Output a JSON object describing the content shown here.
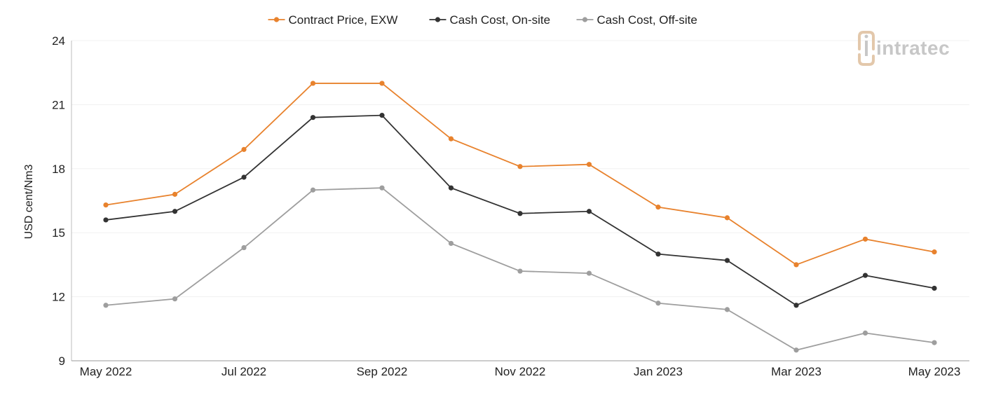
{
  "chart_data": {
    "type": "line",
    "title": "",
    "xlabel": "",
    "ylabel": "USD cent/Nm3",
    "ylim": [
      9,
      24
    ],
    "yticks": [
      9,
      12,
      15,
      18,
      21,
      24
    ],
    "grid": true,
    "legend_position": "top-center",
    "categories": [
      "May 2022",
      "Jun 2022",
      "Jul 2022",
      "Aug 2022",
      "Sep 2022",
      "Oct 2022",
      "Nov 2022",
      "Dec 2022",
      "Jan 2023",
      "Feb 2023",
      "Mar 2023",
      "Apr 2023",
      "May 2023"
    ],
    "x_tick_labels": [
      "May 2022",
      "Jul 2022",
      "Sep 2022",
      "Nov 2022",
      "Jan 2023",
      "Mar 2023",
      "May 2023"
    ],
    "series": [
      {
        "name": "Contract Price, EXW",
        "color": "#e8822d",
        "values": [
          16.3,
          16.8,
          18.9,
          22.0,
          22.0,
          19.4,
          18.1,
          18.2,
          16.2,
          15.7,
          13.5,
          14.7,
          14.1
        ]
      },
      {
        "name": "Cash Cost, On-site",
        "color": "#333333",
        "values": [
          15.6,
          16.0,
          17.6,
          20.4,
          20.5,
          17.1,
          15.9,
          16.0,
          14.0,
          13.7,
          11.6,
          13.0,
          12.4
        ]
      },
      {
        "name": "Cash Cost, Off-site",
        "color": "#9e9e9e",
        "values": [
          11.6,
          11.9,
          14.3,
          17.0,
          17.1,
          14.5,
          13.2,
          13.1,
          11.7,
          11.4,
          9.5,
          10.3,
          9.85
        ]
      }
    ]
  },
  "logo": {
    "text": "intratec",
    "icon": "intratec-logo-icon",
    "accent_color": "#e3c8ab",
    "text_color": "#c7c7c7"
  }
}
